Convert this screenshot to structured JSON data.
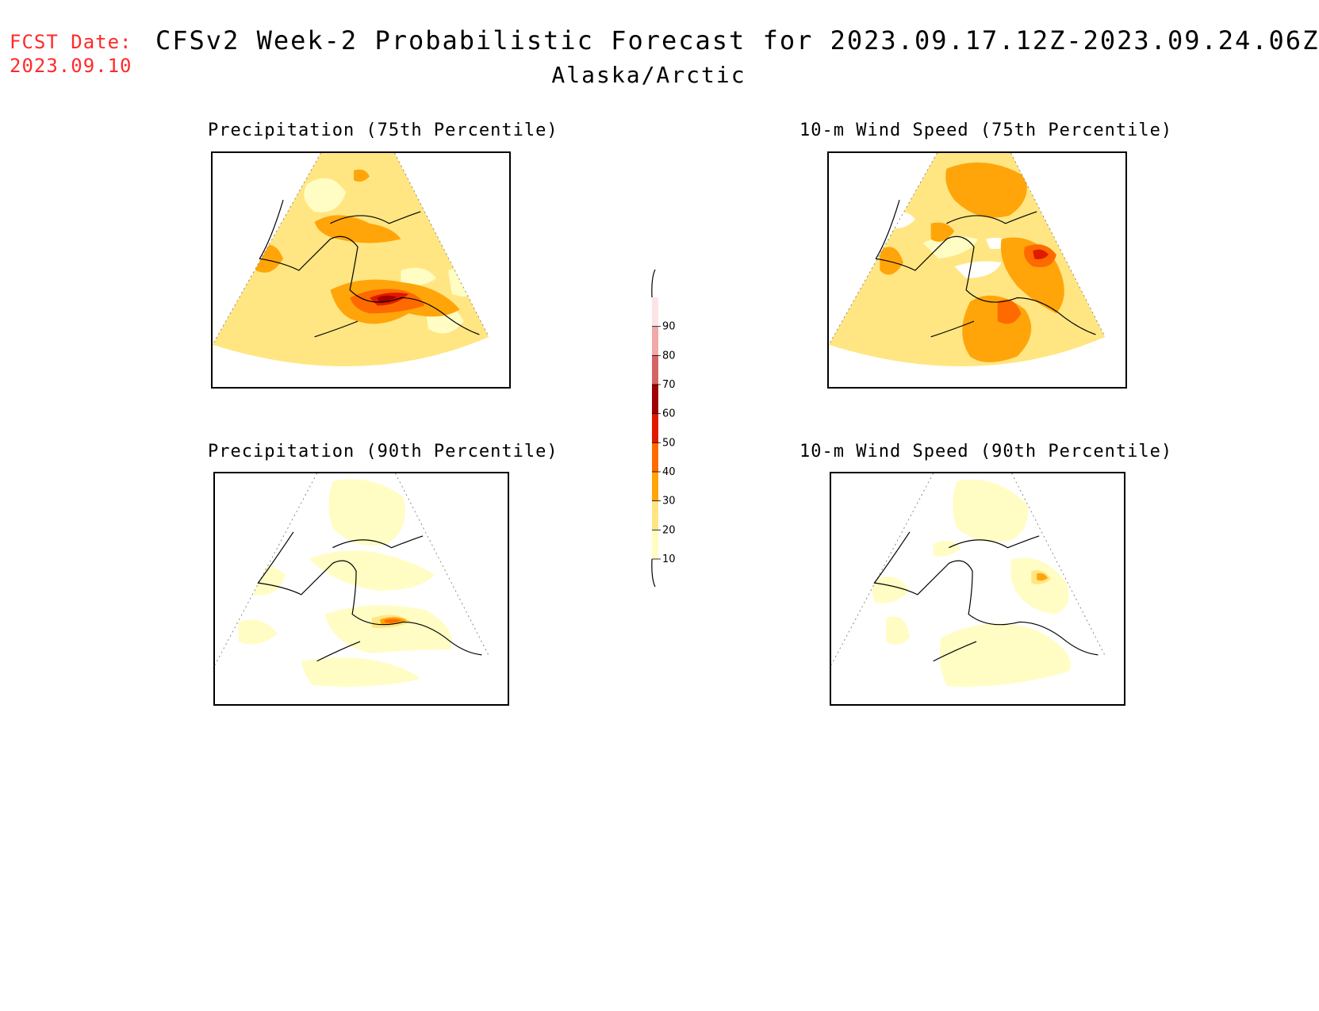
{
  "header": {
    "fcst_label": "FCST Date:",
    "fcst_date": "2023.09.10",
    "title": "CFSv2 Week-2 Probabilistic Forecast for 2023.09.17.12Z-2023.09.24.06Z",
    "subtitle": "Alaska/Arctic"
  },
  "panels": {
    "p75": {
      "title": "Precipitation (75th Percentile)"
    },
    "p90": {
      "title": "Precipitation (90th Percentile)"
    },
    "w75": {
      "title": "10-m Wind Speed (75th Percentile)"
    },
    "w90": {
      "title": "10-m Wind Speed (90th Percentile)"
    }
  },
  "colorbar": {
    "levels": [
      "10",
      "20",
      "30",
      "40",
      "50",
      "60",
      "70",
      "80",
      "90"
    ],
    "colors": [
      "#fffdc4",
      "#ffe682",
      "#ffa50a",
      "#ff6a00",
      "#e01a00",
      "#a00000",
      "#d56565",
      "#f0a8a8",
      "#fde4e4"
    ]
  }
}
